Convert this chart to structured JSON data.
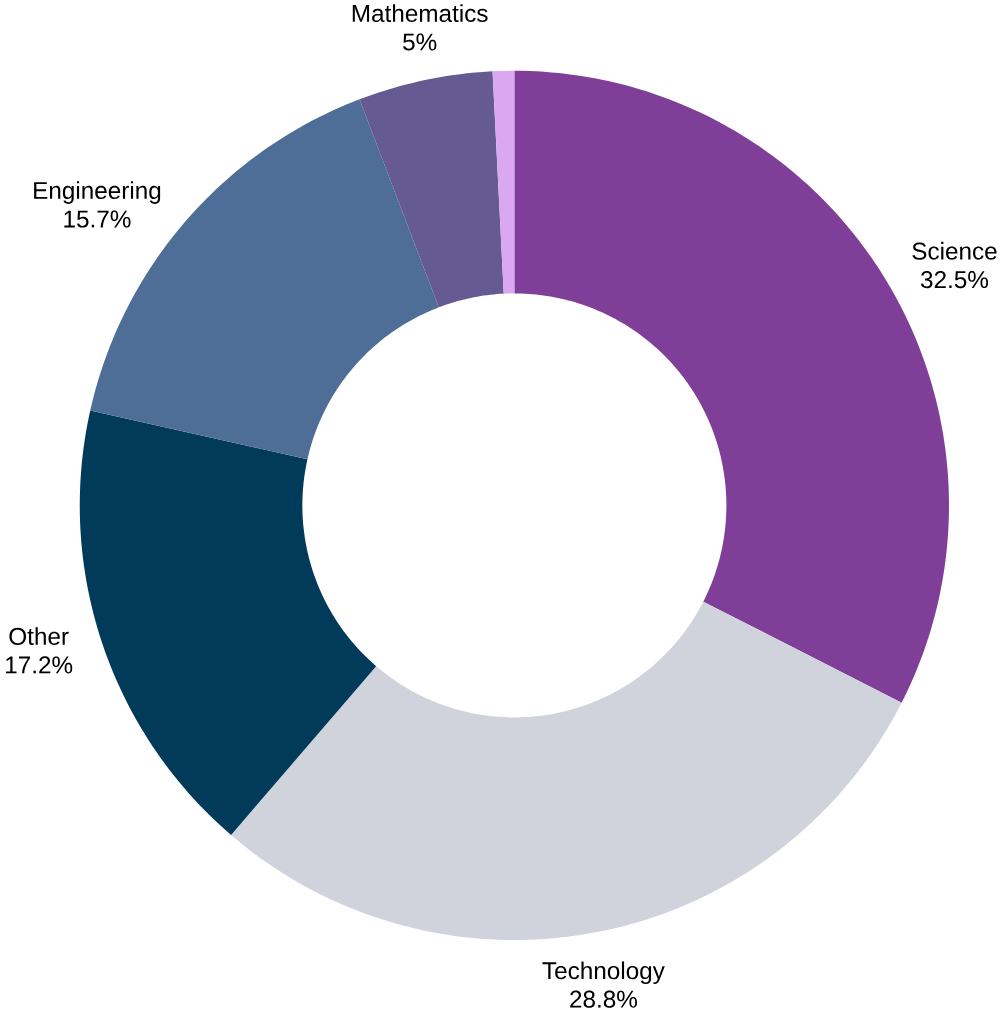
{
  "chart_data": {
    "type": "donut",
    "categories": [
      "Science",
      "Technology",
      "Other",
      "Engineering",
      "Mathematics",
      null
    ],
    "values": [
      32.5,
      28.8,
      17.2,
      15.7,
      5,
      0.8
    ],
    "value_labels": [
      "32.5%",
      "28.8%",
      "17.2%",
      "15.7%",
      "5%",
      null
    ],
    "colors": [
      "#7f3f98",
      "#d0d2dc",
      "#023a59",
      "#4e6e97",
      "#655a92",
      "#d9a8f0"
    ]
  }
}
